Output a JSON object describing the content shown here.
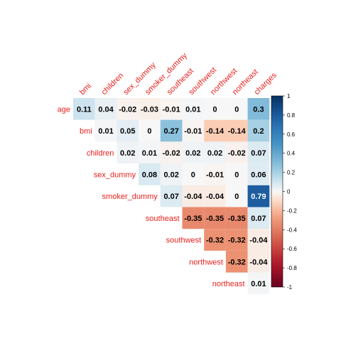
{
  "chart_data": {
    "type": "heatmap",
    "title": "",
    "row_labels": [
      "age",
      "bmi",
      "children",
      "sex_dummy",
      "smoker_dummy",
      "southeast",
      "southwest",
      "northwest",
      "northeast"
    ],
    "col_labels": [
      "bmi",
      "children",
      "sex_dummy",
      "smoker_dummy",
      "southeast",
      "southwest",
      "northwest",
      "northeast",
      "charges"
    ],
    "cells": [
      {
        "row": "age",
        "col": "bmi",
        "value": 0.11,
        "label": "0.11"
      },
      {
        "row": "age",
        "col": "children",
        "value": 0.04,
        "label": "0.04"
      },
      {
        "row": "age",
        "col": "sex_dummy",
        "value": -0.02,
        "label": "-0.02"
      },
      {
        "row": "age",
        "col": "smoker_dummy",
        "value": -0.03,
        "label": "-0.03"
      },
      {
        "row": "age",
        "col": "southeast",
        "value": -0.01,
        "label": "-0.01"
      },
      {
        "row": "age",
        "col": "southwest",
        "value": 0.01,
        "label": "0.01"
      },
      {
        "row": "age",
        "col": "northwest",
        "value": 0,
        "label": "0"
      },
      {
        "row": "age",
        "col": "northeast",
        "value": 0,
        "label": "0"
      },
      {
        "row": "age",
        "col": "charges",
        "value": 0.3,
        "label": "0.3"
      },
      {
        "row": "bmi",
        "col": "children",
        "value": 0.01,
        "label": "0.01"
      },
      {
        "row": "bmi",
        "col": "sex_dummy",
        "value": 0.05,
        "label": "0.05"
      },
      {
        "row": "bmi",
        "col": "smoker_dummy",
        "value": 0,
        "label": "0"
      },
      {
        "row": "bmi",
        "col": "southeast",
        "value": 0.27,
        "label": "0.27"
      },
      {
        "row": "bmi",
        "col": "southwest",
        "value": -0.01,
        "label": "-0.01"
      },
      {
        "row": "bmi",
        "col": "northwest",
        "value": -0.14,
        "label": "-0.14"
      },
      {
        "row": "bmi",
        "col": "northeast",
        "value": -0.14,
        "label": "-0.14"
      },
      {
        "row": "bmi",
        "col": "charges",
        "value": 0.2,
        "label": "0.2"
      },
      {
        "row": "children",
        "col": "sex_dummy",
        "value": 0.02,
        "label": "0.02"
      },
      {
        "row": "children",
        "col": "smoker_dummy",
        "value": 0.01,
        "label": "0.01"
      },
      {
        "row": "children",
        "col": "southeast",
        "value": -0.02,
        "label": "-0.02"
      },
      {
        "row": "children",
        "col": "southwest",
        "value": 0.02,
        "label": "0.02"
      },
      {
        "row": "children",
        "col": "northwest",
        "value": 0.02,
        "label": "0.02"
      },
      {
        "row": "children",
        "col": "northeast",
        "value": -0.02,
        "label": "-0.02"
      },
      {
        "row": "children",
        "col": "charges",
        "value": 0.07,
        "label": "0.07"
      },
      {
        "row": "sex_dummy",
        "col": "smoker_dummy",
        "value": 0.08,
        "label": "0.08"
      },
      {
        "row": "sex_dummy",
        "col": "southeast",
        "value": 0.02,
        "label": "0.02"
      },
      {
        "row": "sex_dummy",
        "col": "southwest",
        "value": 0,
        "label": "0"
      },
      {
        "row": "sex_dummy",
        "col": "northwest",
        "value": -0.01,
        "label": "-0.01"
      },
      {
        "row": "sex_dummy",
        "col": "northeast",
        "value": 0,
        "label": "0"
      },
      {
        "row": "sex_dummy",
        "col": "charges",
        "value": 0.06,
        "label": "0.06"
      },
      {
        "row": "smoker_dummy",
        "col": "southeast",
        "value": 0.07,
        "label": "0.07"
      },
      {
        "row": "smoker_dummy",
        "col": "southwest",
        "value": -0.04,
        "label": "-0.04"
      },
      {
        "row": "smoker_dummy",
        "col": "northwest",
        "value": -0.04,
        "label": "-0.04"
      },
      {
        "row": "smoker_dummy",
        "col": "northeast",
        "value": 0,
        "label": "0"
      },
      {
        "row": "smoker_dummy",
        "col": "charges",
        "value": 0.79,
        "label": "0.79"
      },
      {
        "row": "southeast",
        "col": "southwest",
        "value": -0.35,
        "label": "-0.35"
      },
      {
        "row": "southeast",
        "col": "northwest",
        "value": -0.35,
        "label": "-0.35"
      },
      {
        "row": "southeast",
        "col": "northeast",
        "value": -0.35,
        "label": "-0.35"
      },
      {
        "row": "southeast",
        "col": "charges",
        "value": 0.07,
        "label": "0.07"
      },
      {
        "row": "southwest",
        "col": "northwest",
        "value": -0.32,
        "label": "-0.32"
      },
      {
        "row": "southwest",
        "col": "northeast",
        "value": -0.32,
        "label": "-0.32"
      },
      {
        "row": "southwest",
        "col": "charges",
        "value": -0.04,
        "label": "-0.04"
      },
      {
        "row": "northwest",
        "col": "northeast",
        "value": -0.32,
        "label": "-0.32"
      },
      {
        "row": "northwest",
        "col": "charges",
        "value": -0.04,
        "label": "-0.04"
      },
      {
        "row": "northeast",
        "col": "charges",
        "value": 0.01,
        "label": "0.01"
      }
    ],
    "colorbar": {
      "min": -1,
      "max": 1,
      "ticks": [
        "1",
        "0.8",
        "0.6",
        "0.4",
        "0.2",
        "0",
        "-0.2",
        "-0.4",
        "-0.6",
        "-0.8",
        "-1"
      ],
      "tick_values": [
        1,
        0.8,
        0.6,
        0.4,
        0.2,
        0,
        -0.2,
        -0.4,
        -0.6,
        -0.8,
        -1
      ]
    },
    "colors": {
      "negative": "#67001f",
      "neutral": "#f7f7f7",
      "positive": "#053061",
      "label_color": "#e8201c"
    },
    "grid": false,
    "legend": "right"
  }
}
